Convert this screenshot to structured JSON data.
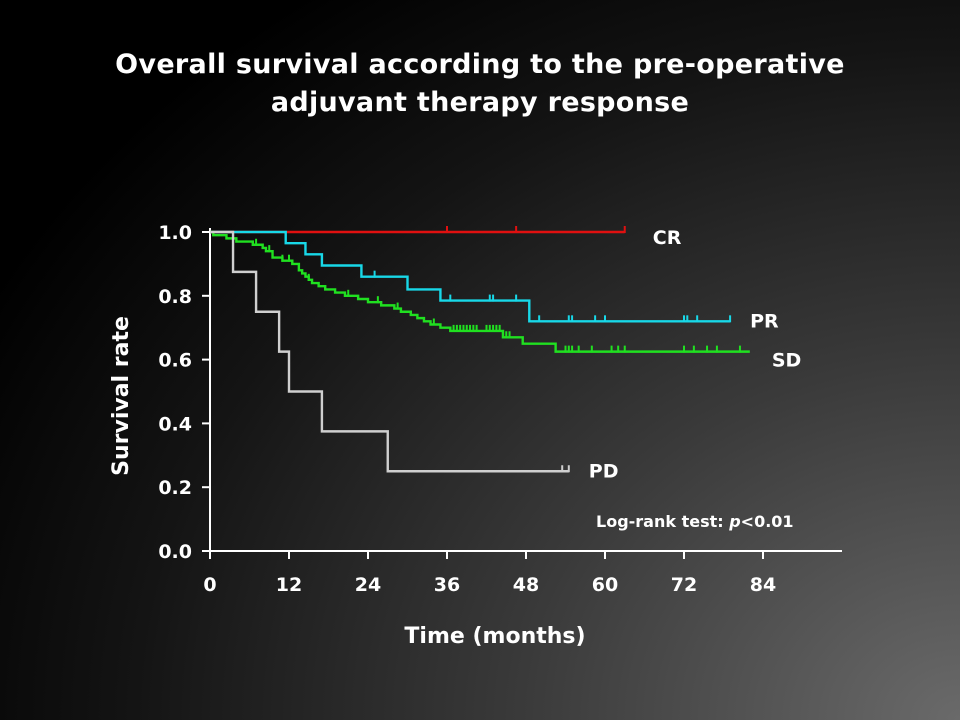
{
  "chart_data": {
    "type": "line",
    "title_line1": "Overall survival according to the pre-operative",
    "title_line2": "adjuvant therapy response",
    "xlabel": "Time (months)",
    "ylabel": "Survival rate",
    "xlim": [
      0,
      96
    ],
    "ylim": [
      0,
      1.0
    ],
    "x_ticks": [
      0,
      12,
      24,
      36,
      48,
      60,
      72,
      84
    ],
    "x_tick_labels": [
      "0",
      "12",
      "24",
      "36",
      "48",
      "60",
      "72",
      "84"
    ],
    "y_ticks": [
      0.0,
      0.2,
      0.4,
      0.6,
      0.8,
      1.0
    ],
    "y_tick_labels": [
      "0.0",
      "0.2",
      "0.4",
      "0.6",
      "0.8",
      "1.0"
    ],
    "annotation_prefix": "Log-rank test: ",
    "annotation_italic": "p",
    "annotation_suffix": "<0.01",
    "series": [
      {
        "name": "CR",
        "color": "#e01010",
        "steps": [
          [
            0,
            1.0
          ],
          [
            63,
            1.0
          ]
        ],
        "censors": [
          36,
          46.5,
          63
        ]
      },
      {
        "name": "PR",
        "color": "#18d8e8",
        "steps": [
          [
            0,
            1.0
          ],
          [
            11.5,
            0.965
          ],
          [
            14.5,
            0.93
          ],
          [
            17,
            0.895
          ],
          [
            23,
            0.86
          ],
          [
            30,
            0.82
          ],
          [
            35,
            0.785
          ],
          [
            48.5,
            0.72
          ],
          [
            79,
            0.72
          ]
        ],
        "censors": [
          25,
          36.5,
          42.5,
          43,
          46.5,
          50,
          54.5,
          55,
          58.5,
          60,
          72,
          72.5,
          74,
          79
        ]
      },
      {
        "name": "SD",
        "color": "#20e020",
        "steps": [
          [
            0,
            1.0
          ],
          [
            0.5,
            0.99
          ],
          [
            2.5,
            0.98
          ],
          [
            4,
            0.97
          ],
          [
            6.5,
            0.96
          ],
          [
            8,
            0.95
          ],
          [
            8.5,
            0.94
          ],
          [
            9.5,
            0.92
          ],
          [
            11,
            0.91
          ],
          [
            12.5,
            0.9
          ],
          [
            13.5,
            0.88
          ],
          [
            14,
            0.87
          ],
          [
            14.5,
            0.86
          ],
          [
            15,
            0.85
          ],
          [
            15.5,
            0.84
          ],
          [
            16.5,
            0.83
          ],
          [
            17.5,
            0.82
          ],
          [
            19,
            0.81
          ],
          [
            20.5,
            0.8
          ],
          [
            22.5,
            0.79
          ],
          [
            24,
            0.78
          ],
          [
            26,
            0.77
          ],
          [
            28,
            0.76
          ],
          [
            29,
            0.75
          ],
          [
            30.5,
            0.74
          ],
          [
            31.5,
            0.73
          ],
          [
            32.5,
            0.72
          ],
          [
            33.5,
            0.71
          ],
          [
            35,
            0.7
          ],
          [
            36.5,
            0.69
          ],
          [
            44.5,
            0.67
          ],
          [
            47.5,
            0.65
          ],
          [
            52.5,
            0.625
          ],
          [
            82,
            0.625
          ]
        ],
        "censors": [
          7,
          9,
          11,
          12,
          15,
          21,
          25.5,
          28.5,
          34,
          37,
          37.5,
          38,
          38.5,
          39,
          39.5,
          40,
          40.5,
          42,
          42.5,
          43,
          43.5,
          44,
          44.5,
          45,
          45.5,
          54,
          54.5,
          55,
          56,
          58,
          61,
          62,
          63,
          72,
          73.5,
          75.5,
          77,
          80.5
        ]
      },
      {
        "name": "PD",
        "color": "#cfcfcf",
        "steps": [
          [
            0,
            1.0
          ],
          [
            3.5,
            0.875
          ],
          [
            7,
            0.75
          ],
          [
            10.5,
            0.625
          ],
          [
            12,
            0.5
          ],
          [
            17,
            0.375
          ],
          [
            27,
            0.25
          ],
          [
            54.5,
            0.25
          ]
        ],
        "censors": [
          53.5,
          54.5
        ]
      }
    ]
  }
}
